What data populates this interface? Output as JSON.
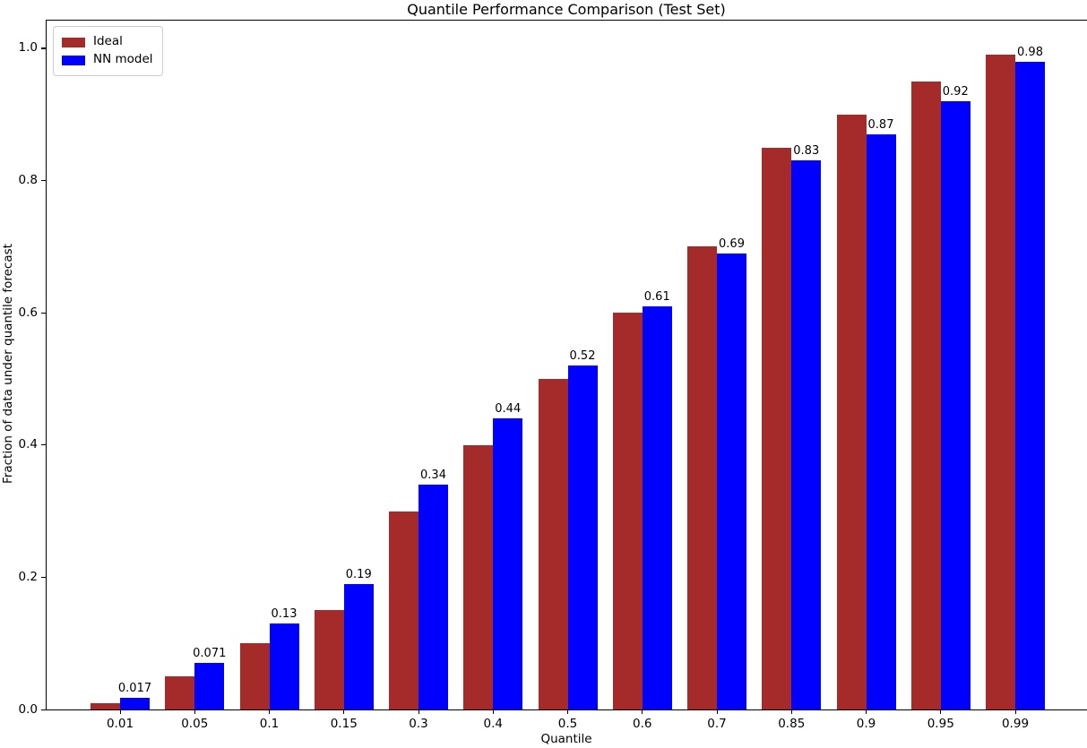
{
  "chart_data": {
    "type": "bar",
    "title": "Quantile Performance Comparison (Test Set)",
    "xlabel": "Quantile",
    "ylabel": "Fraction of data under quantile forecast",
    "categories": [
      "0.01",
      "0.05",
      "0.1",
      "0.15",
      "0.3",
      "0.4",
      "0.5",
      "0.6",
      "0.7",
      "0.85",
      "0.9",
      "0.95",
      "0.99"
    ],
    "series": [
      {
        "name": "Ideal",
        "color": "#A52A2A",
        "values": [
          0.01,
          0.05,
          0.1,
          0.15,
          0.3,
          0.4,
          0.5,
          0.6,
          0.7,
          0.85,
          0.9,
          0.95,
          0.99
        ]
      },
      {
        "name": "NN model",
        "color": "#0000FF",
        "values": [
          0.017,
          0.071,
          0.13,
          0.19,
          0.34,
          0.44,
          0.52,
          0.61,
          0.69,
          0.83,
          0.87,
          0.92,
          0.98
        ],
        "bar_labels": [
          "0.017",
          "0.071",
          "0.13",
          "0.19",
          "0.34",
          "0.44",
          "0.52",
          "0.61",
          "0.69",
          "0.83",
          "0.87",
          "0.92",
          "0.98"
        ]
      }
    ],
    "yticks": [
      "0.0",
      "0.2",
      "0.4",
      "0.6",
      "0.8",
      "1.0"
    ],
    "ylim": [
      0,
      1.042
    ],
    "grid": false,
    "legend_position": "upper left",
    "bar_labels_on_series": "NN model",
    "text_color": "#000000",
    "background_color": "#ffffff"
  }
}
